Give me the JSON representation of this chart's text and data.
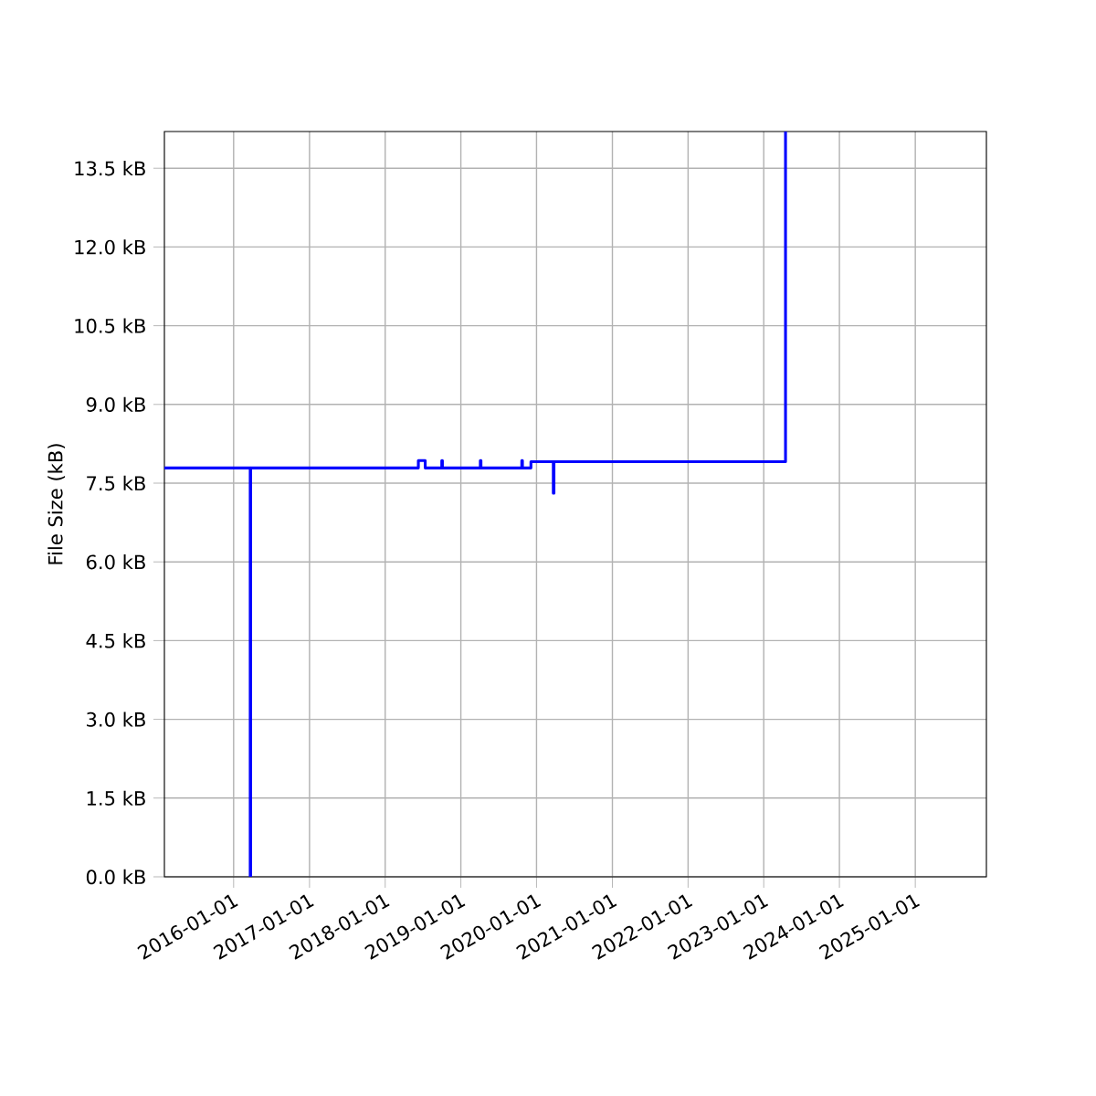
{
  "chart_data": {
    "type": "step",
    "ylabel": "File Size (kB)",
    "x": [
      "2015-02-01",
      "2016-03-21",
      "2016-03-23",
      "2018-06-10",
      "2018-07-13",
      "2018-10-01",
      "2018-10-04",
      "2019-04-05",
      "2019-04-08",
      "2019-10-22",
      "2019-10-25",
      "2019-12-05",
      "2020-03-22",
      "2020-03-25",
      "2023-04-16"
    ],
    "series": [
      {
        "color": "#0000ff",
        "values": [
          7.79,
          0,
          7.79,
          7.93,
          7.79,
          7.93,
          7.79,
          7.93,
          7.79,
          7.93,
          7.79,
          7.91,
          7.31,
          7.91,
          14.2
        ]
      }
    ],
    "xlim": [
      "2015-02-01",
      "2025-12-10"
    ],
    "xticks": [
      "2016-01-01",
      "2017-01-01",
      "2018-01-01",
      "2019-01-01",
      "2020-01-01",
      "2021-01-01",
      "2022-01-01",
      "2023-01-01",
      "2024-01-01",
      "2025-01-01"
    ],
    "ylim": [
      0,
      14.2
    ],
    "yticks": [
      {
        "value": 0,
        "label": "0.0 kB"
      },
      {
        "value": 1.5,
        "label": "1.5 kB"
      },
      {
        "value": 3,
        "label": "3.0 kB"
      },
      {
        "value": 4.5,
        "label": "4.5 kB"
      },
      {
        "value": 6,
        "label": "6.0 kB"
      },
      {
        "value": 7.5,
        "label": "7.5 kB"
      },
      {
        "value": 9,
        "label": "9.0 kB"
      },
      {
        "value": 10.5,
        "label": "10.5 kB"
      },
      {
        "value": 12,
        "label": "12.0 kB"
      },
      {
        "value": 13.5,
        "label": "13.5 kB"
      }
    ],
    "grid": true
  }
}
